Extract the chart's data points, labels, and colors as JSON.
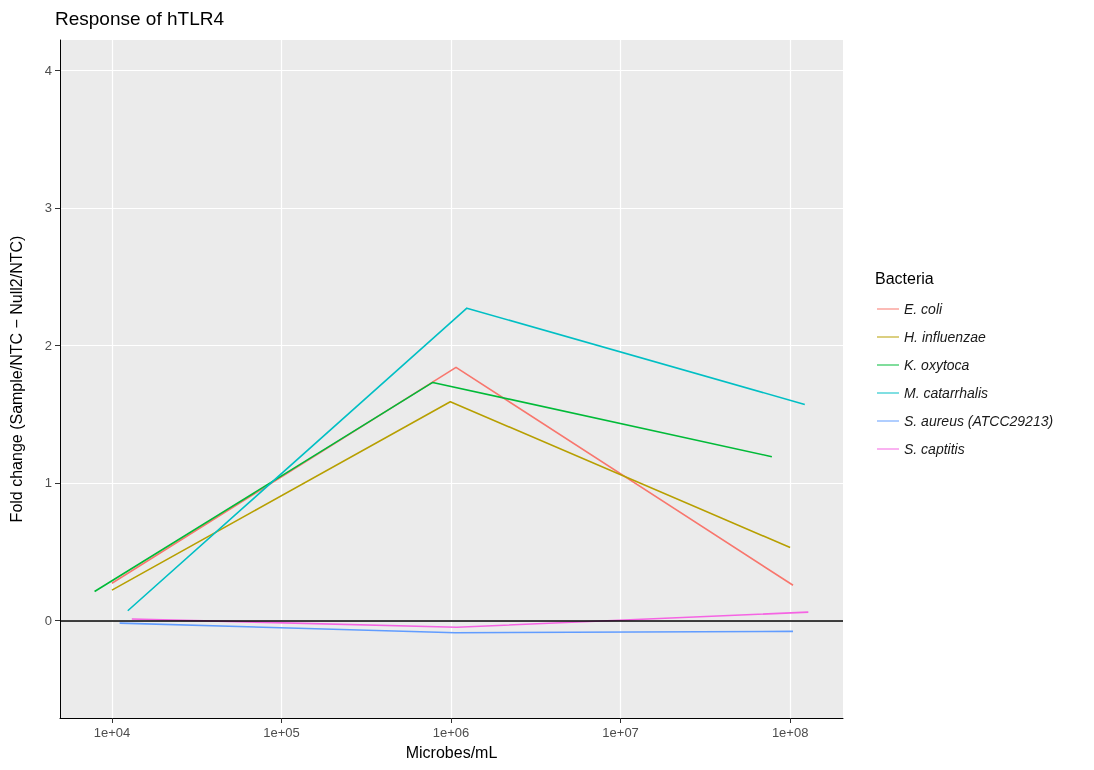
{
  "chart_data": {
    "type": "line",
    "title": "Response of hTLR4",
    "xlabel": "Microbes/mL",
    "ylabel": "Fold change (Sample/NTC − Null2/NTC)",
    "legend_title": "Bacteria",
    "log": "x",
    "xlim": [
      4940,
      205000000
    ],
    "xticks": [
      {
        "value": 10000,
        "label": "1e+04"
      },
      {
        "value": 100000,
        "label": "1e+05"
      },
      {
        "value": 1000000,
        "label": "1e+06"
      },
      {
        "value": 10000000,
        "label": "1e+07"
      },
      {
        "value": 100000000,
        "label": "1e+08"
      }
    ],
    "ylim": [
      -0.71,
      4.22
    ],
    "yticks": [
      0,
      1,
      2,
      3,
      4
    ],
    "grid": true,
    "legend": "right",
    "marker": "none",
    "line_style": "solid",
    "ref_lines": [
      {
        "axis": "y",
        "value": 0,
        "color": "#000000"
      }
    ],
    "series": [
      {
        "name": "E. coli",
        "color": "#f8766d",
        "x": [
          10000,
          1070000,
          104000000
        ],
        "values": [
          0.27,
          1.84,
          0.255
        ]
      },
      {
        "name": "H. influenzae",
        "color": "#b79f00",
        "x": [
          10000,
          990000,
          100000000
        ],
        "values": [
          0.22,
          1.59,
          0.53
        ]
      },
      {
        "name": "K. oxytoca",
        "color": "#00ba38",
        "x": [
          7900,
          780000,
          78000000
        ],
        "values": [
          0.21,
          1.73,
          1.19
        ]
      },
      {
        "name": "M. catarrhalis",
        "color": "#00bfc4",
        "x": [
          12400,
          1240000,
          122000000
        ],
        "values": [
          0.07,
          2.27,
          1.57
        ]
      },
      {
        "name": "S. aureus (ATCC29213)",
        "color": "#619cff",
        "x": [
          11100,
          1060000,
          104000000
        ],
        "values": [
          -0.02,
          -0.09,
          -0.08
        ]
      },
      {
        "name": "S. captitis",
        "color": "#f564e3",
        "x": [
          13100,
          1080000,
          128000000
        ],
        "values": [
          0.01,
          -0.05,
          0.06
        ]
      }
    ]
  }
}
